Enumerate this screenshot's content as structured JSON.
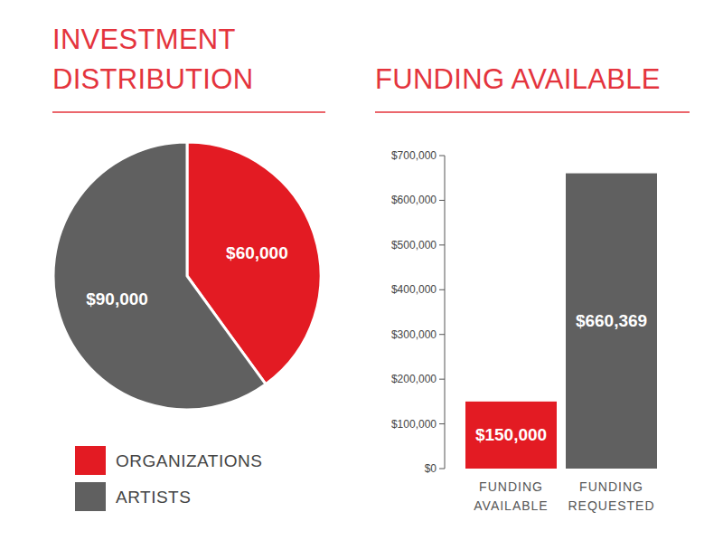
{
  "chart_data": [
    {
      "type": "pie",
      "title": "INVESTMENT DISTRIBUTION",
      "categories": [
        "ORGANIZATIONS",
        "ARTISTS"
      ],
      "values": [
        60000,
        90000
      ],
      "value_labels": [
        "$60,000",
        "$90,000"
      ],
      "colors": [
        "#e31b23",
        "#606060"
      ],
      "data_labels": true,
      "legend": "bottom"
    },
    {
      "type": "bar",
      "title": "FUNDING AVAILABLE",
      "categories": [
        "FUNDING AVAILABLE",
        "FUNDING REQUESTED"
      ],
      "values": [
        150000,
        660369
      ],
      "value_labels": [
        "$150,000",
        "$660,369"
      ],
      "colors": [
        "#e31b23",
        "#606060"
      ],
      "ylim": [
        0,
        700000
      ],
      "yticks": [
        {
          "value": 0,
          "label": "$0"
        },
        {
          "value": 100000,
          "label": "$100,000"
        },
        {
          "value": 200000,
          "label": "$200,000"
        },
        {
          "value": 300000,
          "label": "$300,000"
        },
        {
          "value": 400000,
          "label": "$400,000"
        },
        {
          "value": 500000,
          "label": "$500,000"
        },
        {
          "value": 600000,
          "label": "$600,000"
        },
        {
          "value": 700000,
          "label": "$700,000"
        }
      ],
      "grid": false,
      "data_labels": true
    }
  ]
}
